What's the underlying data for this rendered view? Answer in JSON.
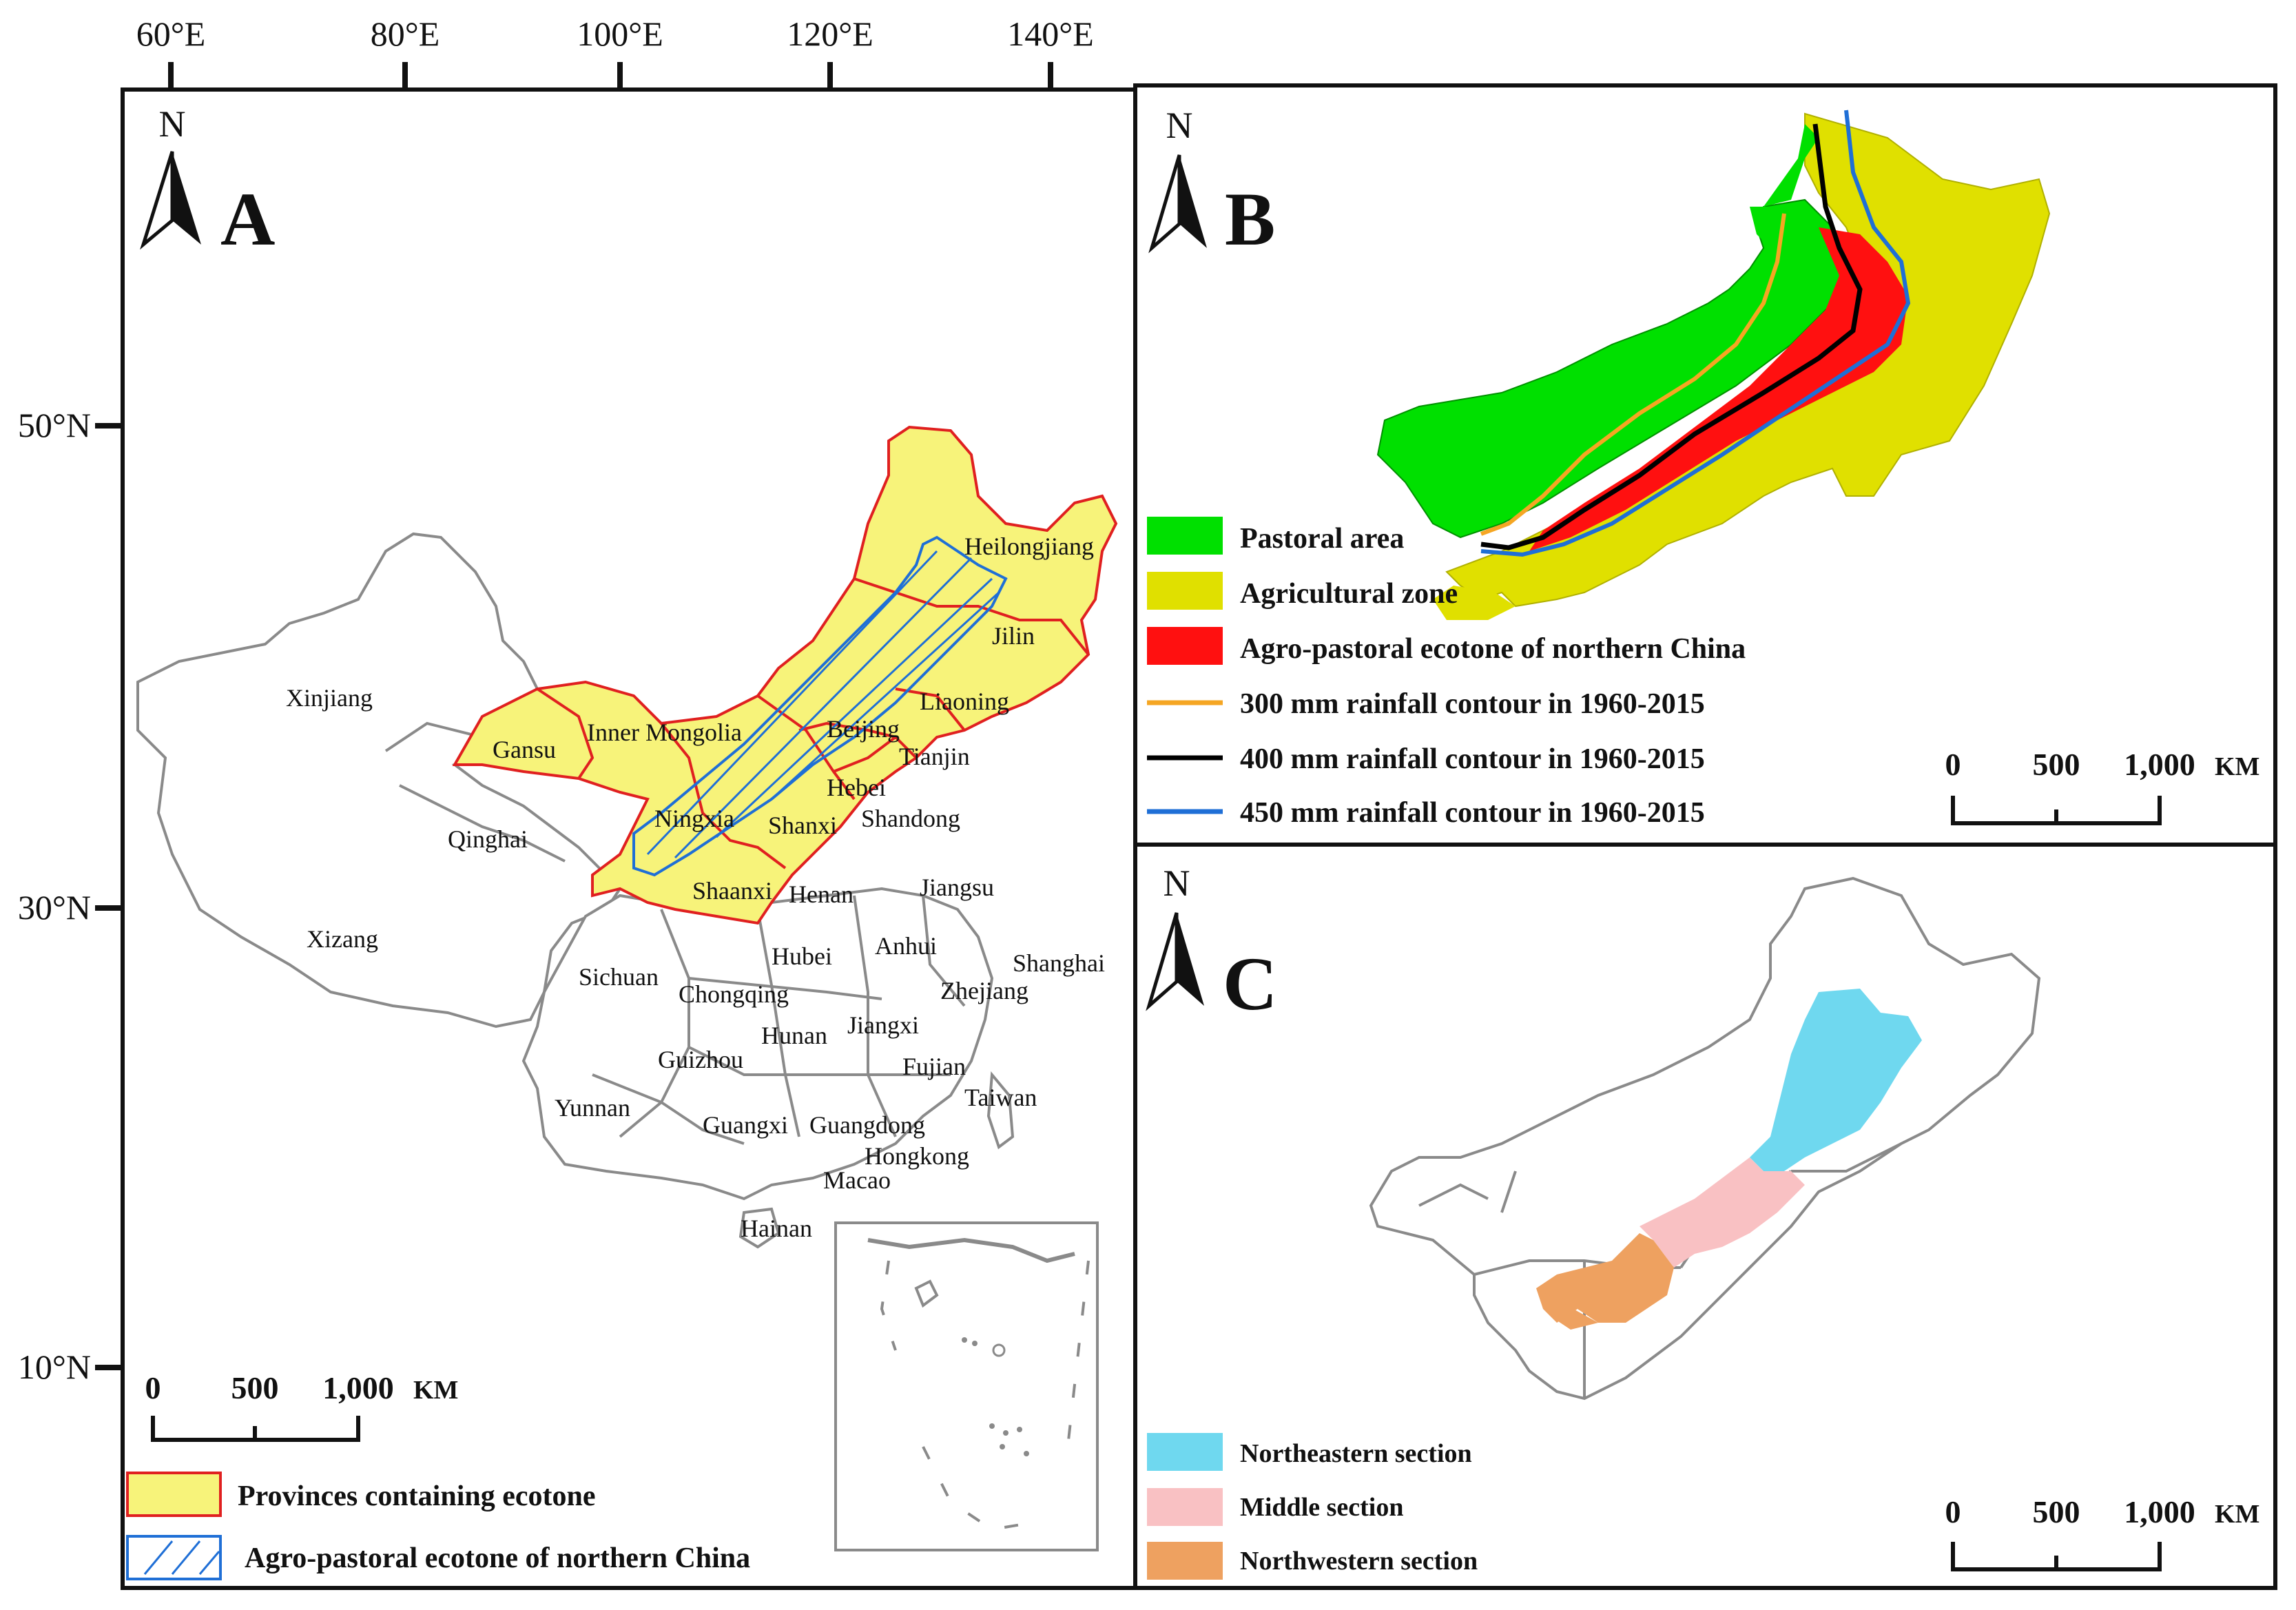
{
  "axes": {
    "lon_labels": [
      "60°E",
      "80°E",
      "100°E",
      "120°E",
      "140°E"
    ],
    "lat_labels": [
      "50°N",
      "30°N",
      "10°N"
    ]
  },
  "panel_a": {
    "label": "A",
    "north": "N",
    "scale": {
      "zero": "0",
      "mid": "500",
      "end": "1,000",
      "unit": "KM"
    },
    "provinces": [
      "Xinjiang",
      "Gansu",
      "Inner Mongolia",
      "Heilongjiang",
      "Jilin",
      "Liaoning",
      "Beijing",
      "Tianjin",
      "Hebei",
      "Ningxia",
      "Shanxi",
      "Shandong",
      "Qinghai",
      "Shaanxi",
      "Henan",
      "Jiangsu",
      "Xizang",
      "Sichuan",
      "Hubei",
      "Anhui",
      "Shanghai",
      "Chongqing",
      "Zhejiang",
      "Jiangxi",
      "Hunan",
      "Guizhou",
      "Fujian",
      "Taiwan",
      "Yunnan",
      "Guangxi",
      "Guangdong",
      "Hongkong",
      "Macao",
      "Hainan"
    ],
    "legend": [
      {
        "label": "Provinces containing ecotone",
        "fill": "#f7f37a",
        "stroke": "#e02020"
      },
      {
        "label": "Agro-pastoral ecotone of northern China",
        "fill": "#ffffff",
        "stroke": "#1f6fd6"
      }
    ]
  },
  "panel_b": {
    "label": "B",
    "north": "N",
    "scale": {
      "zero": "0",
      "mid": "500",
      "end": "1,000",
      "unit": "KM"
    },
    "legend": [
      {
        "label": "Pastoral area",
        "color": "#00e000",
        "kind": "box"
      },
      {
        "label": "Agricultural zone",
        "color": "#e0e000",
        "kind": "box"
      },
      {
        "label": "Agro-pastoral ecotone of northern China",
        "color": "#ff1010",
        "kind": "box"
      },
      {
        "label": "300 mm rainfall contour in 1960-2015",
        "color": "#f5a623",
        "kind": "line"
      },
      {
        "label": "400 mm rainfall contour in 1960-2015",
        "color": "#000000",
        "kind": "line"
      },
      {
        "label": "450 mm rainfall contour in 1960-2015",
        "color": "#1f6fd6",
        "kind": "line"
      }
    ]
  },
  "panel_c": {
    "label": "C",
    "north": "N",
    "scale": {
      "zero": "0",
      "mid": "500",
      "end": "1,000",
      "unit": "KM"
    },
    "legend": [
      {
        "label": "Northeastern section",
        "color": "#6fd8ef"
      },
      {
        "label": "Middle section",
        "color": "#f9c1c3"
      },
      {
        "label": "Northwestern section",
        "color": "#eea160"
      }
    ]
  }
}
